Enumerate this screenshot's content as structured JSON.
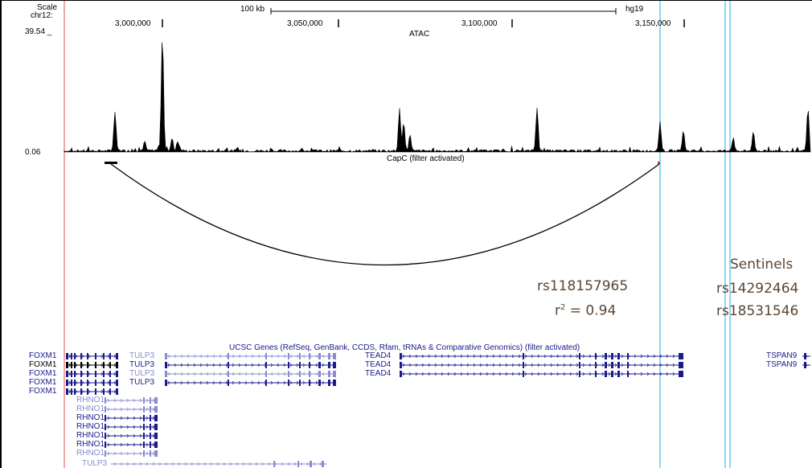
{
  "header": {
    "scale_label": "Scale",
    "chr_label": "chr12:",
    "scale_bar_label": "100 kb",
    "assembly": "hg19",
    "positions": [
      "3,000,000",
      "3,050,000",
      "3,100,000",
      "3,150,000"
    ]
  },
  "atac": {
    "track_name": "ATAC",
    "max_value": "39.54 _",
    "min_value": "0.06"
  },
  "capc": {
    "track_name": "CapC (filter activated)"
  },
  "annotations": {
    "snp": "rs118157965",
    "r2_prefix": "r",
    "r2_sup": "2",
    "r2_value": " = 0.94",
    "sentinels_title": "Sentinels",
    "sentinel_1": "rs14292464",
    "sentinel_2": "rs18531546"
  },
  "genes": {
    "track_name": "UCSC Genes (RefSeq, GenBank, CCDS, Rfam, tRNAs & Comparative Genomics) (filter activated)",
    "foxm1": [
      "FOXM1",
      "FOXM1",
      "FOXM1",
      "FOXM1",
      "FOXM1"
    ],
    "tulp3": [
      "TULP3",
      "TULP3",
      "TULP3",
      "TULP3"
    ],
    "tulp3_bottom": "TULP3",
    "rhno1": [
      "RHNO1",
      "RHNO1",
      "RHNO1",
      "RHNO1",
      "RHNO1",
      "RHNO1",
      "RHNO1"
    ],
    "tead4": [
      "TEAD4",
      "TEAD4",
      "TEAD4"
    ],
    "tspan9": [
      "TSPAN9",
      "TSPAN9"
    ]
  },
  "colors": {
    "gene_blue": "#1a1a8c",
    "gene_light": "#8a8ad0",
    "highlight_red": "#f08a8a",
    "highlight_blue": "#8ed8f0",
    "annotation_text": "#5a4632"
  }
}
